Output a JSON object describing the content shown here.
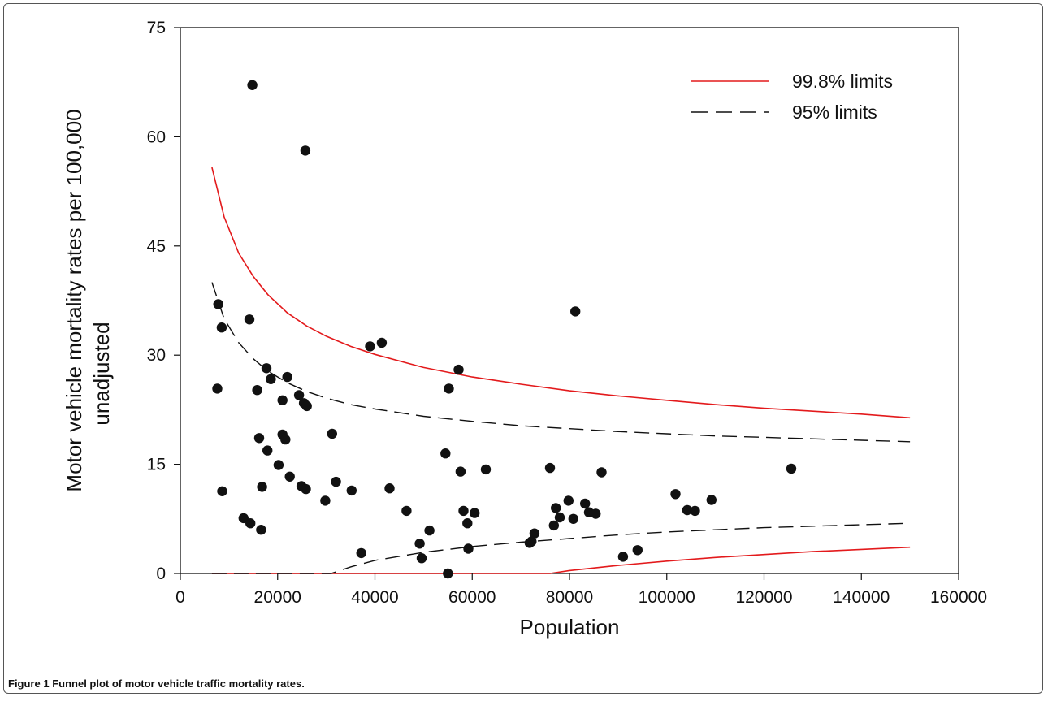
{
  "caption": {
    "label": "Figure 1",
    "text": "Funnel plot of motor vehicle traffic mortality rates."
  },
  "chart_data": {
    "type": "scatter",
    "title": "",
    "xlabel": "Population",
    "ylabel_lines": [
      "Motor vehicle mortality rates per 100,000",
      "unadjusted"
    ],
    "xlim": [
      0,
      160000
    ],
    "ylim": [
      0,
      75
    ],
    "x_ticks": [
      0,
      20000,
      40000,
      60000,
      80000,
      100000,
      120000,
      140000,
      160000
    ],
    "y_ticks": [
      0,
      15,
      30,
      45,
      60,
      75
    ],
    "grid": false,
    "legend_position": "top-right",
    "point_color": "#111111",
    "limit_color_998": "#e31a1c",
    "limit_color_95": "#111111",
    "series": [
      {
        "name": "99.8% limits",
        "style": "solid",
        "upper": {
          "x": [
            6500,
            9000,
            12000,
            15000,
            18000,
            22000,
            26000,
            30000,
            35000,
            40000,
            50000,
            60000,
            70000,
            80000,
            90000,
            100000,
            110000,
            120000,
            130000,
            140000,
            150000
          ],
          "y": [
            55.8,
            49.0,
            44.0,
            40.8,
            38.3,
            35.8,
            34.0,
            32.6,
            31.2,
            30.1,
            28.3,
            27.0,
            26.0,
            25.1,
            24.4,
            23.8,
            23.2,
            22.7,
            22.3,
            21.9,
            21.4
          ]
        },
        "lower": {
          "x": [
            6500,
            76000,
            80000,
            90000,
            100000,
            110000,
            120000,
            130000,
            140000,
            150000
          ],
          "y": [
            0,
            0,
            0.4,
            1.1,
            1.7,
            2.2,
            2.6,
            3.0,
            3.3,
            3.6
          ]
        }
      },
      {
        "name": "95% limits",
        "style": "dashed",
        "upper": {
          "x": [
            6500,
            9000,
            12000,
            15000,
            18000,
            22000,
            26000,
            30000,
            35000,
            40000,
            50000,
            60000,
            70000,
            80000,
            90000,
            100000,
            110000,
            120000,
            130000,
            140000,
            150000
          ],
          "y": [
            40.0,
            35.0,
            31.7,
            29.5,
            27.8,
            26.2,
            25.0,
            24.1,
            23.2,
            22.6,
            21.6,
            20.9,
            20.3,
            19.9,
            19.5,
            19.2,
            18.9,
            18.7,
            18.5,
            18.3,
            18.1
          ]
        },
        "lower": {
          "x": [
            6500,
            31000,
            35000,
            40000,
            50000,
            60000,
            70000,
            80000,
            90000,
            100000,
            110000,
            120000,
            130000,
            140000,
            150000
          ],
          "y": [
            0,
            0,
            0.9,
            1.8,
            2.9,
            3.7,
            4.3,
            4.8,
            5.3,
            5.7,
            6.0,
            6.3,
            6.5,
            6.7,
            6.9
          ]
        }
      }
    ],
    "points": [
      [
        7800,
        37.0
      ],
      [
        7600,
        25.4
      ],
      [
        8500,
        33.8
      ],
      [
        8600,
        11.3
      ],
      [
        13000,
        7.6
      ],
      [
        14200,
        34.9
      ],
      [
        14400,
        6.9
      ],
      [
        14800,
        67.1
      ],
      [
        15800,
        25.2
      ],
      [
        16200,
        18.6
      ],
      [
        16600,
        6.0
      ],
      [
        16800,
        11.9
      ],
      [
        17700,
        28.2
      ],
      [
        17900,
        16.9
      ],
      [
        18600,
        26.7
      ],
      [
        20200,
        14.9
      ],
      [
        21000,
        19.1
      ],
      [
        21000,
        23.8
      ],
      [
        21600,
        18.4
      ],
      [
        22000,
        27.0
      ],
      [
        22500,
        13.3
      ],
      [
        24400,
        24.5
      ],
      [
        24900,
        12.0
      ],
      [
        25400,
        23.4
      ],
      [
        25700,
        58.1
      ],
      [
        25800,
        11.6
      ],
      [
        26000,
        23.0
      ],
      [
        29800,
        10.0
      ],
      [
        31200,
        19.2
      ],
      [
        32000,
        12.6
      ],
      [
        35200,
        11.4
      ],
      [
        37200,
        2.8
      ],
      [
        39000,
        31.2
      ],
      [
        41400,
        31.7
      ],
      [
        43000,
        11.7
      ],
      [
        46500,
        8.6
      ],
      [
        49200,
        4.1
      ],
      [
        49600,
        2.1
      ],
      [
        51200,
        5.9
      ],
      [
        54500,
        16.5
      ],
      [
        55200,
        25.4
      ],
      [
        55000,
        0.0
      ],
      [
        57200,
        28.0
      ],
      [
        57600,
        14.0
      ],
      [
        58200,
        8.6
      ],
      [
        59000,
        6.9
      ],
      [
        59200,
        3.4
      ],
      [
        60500,
        8.3
      ],
      [
        62800,
        14.3
      ],
      [
        71800,
        4.2
      ],
      [
        72200,
        4.4
      ],
      [
        72800,
        5.5
      ],
      [
        76000,
        14.5
      ],
      [
        76800,
        6.6
      ],
      [
        77200,
        9.0
      ],
      [
        78000,
        7.7
      ],
      [
        79800,
        10.0
      ],
      [
        80800,
        7.5
      ],
      [
        81200,
        36.0
      ],
      [
        83200,
        9.6
      ],
      [
        84000,
        8.4
      ],
      [
        85400,
        8.2
      ],
      [
        86600,
        13.9
      ],
      [
        91000,
        2.3
      ],
      [
        94000,
        3.2
      ],
      [
        101800,
        10.9
      ],
      [
        104200,
        8.7
      ],
      [
        105800,
        8.6
      ],
      [
        109200,
        10.1
      ],
      [
        125600,
        14.4
      ]
    ]
  }
}
